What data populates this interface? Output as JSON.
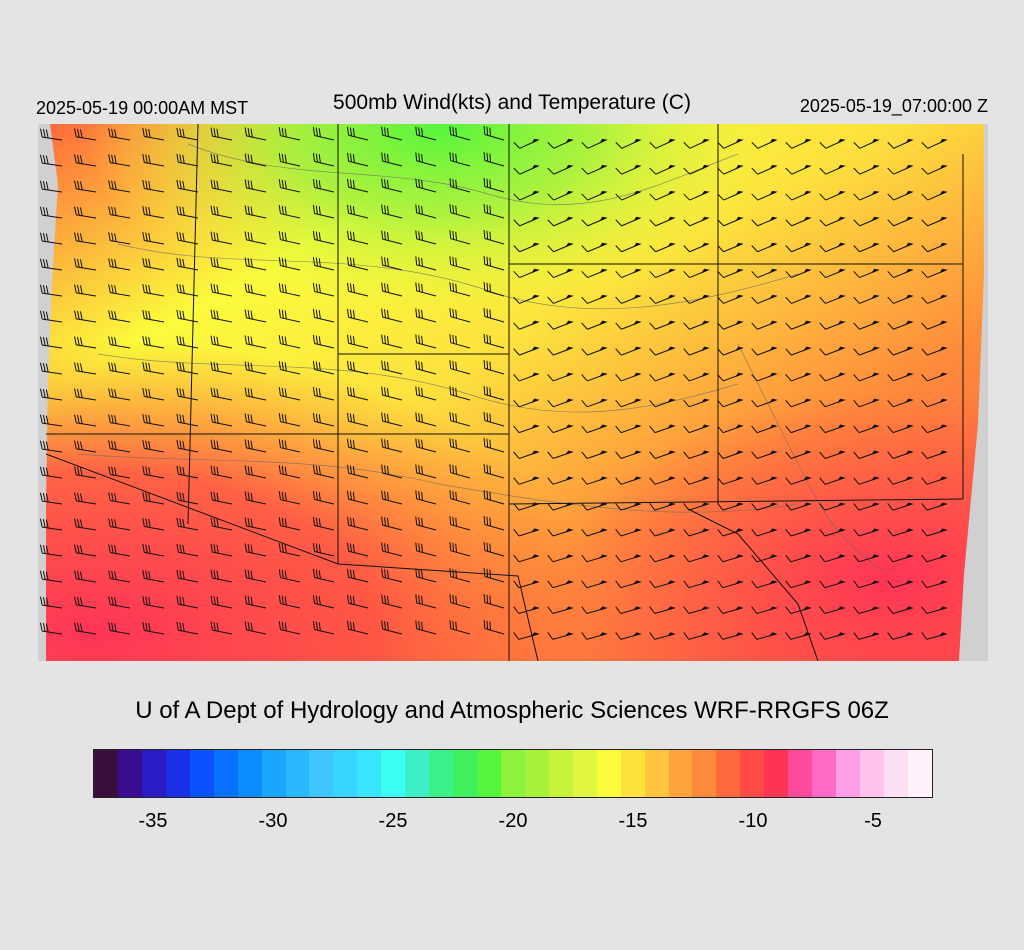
{
  "header": {
    "valid_local": "2025-05-19 00:00AM MST",
    "title": "500mb Wind(kts) and Temperature (C)",
    "valid_utc": "2025-05-19_07:00:00 Z"
  },
  "credit": "U of A Dept of Hydrology and Atmospheric Sciences WRF-RRGFS 06Z",
  "colorbar": {
    "colors": [
      "#3b0f3d",
      "#3a0d8f",
      "#2b1bc4",
      "#1a2fe8",
      "#0a51ff",
      "#0672ff",
      "#0d8cff",
      "#1aa6ff",
      "#2ab8ff",
      "#3fc6ff",
      "#37d4ff",
      "#38e6ff",
      "#3cfff4",
      "#3df0c8",
      "#3cf08a",
      "#3ef05c",
      "#54f53c",
      "#8cf23c",
      "#a8f23e",
      "#c8f23c",
      "#e1f640",
      "#fbfb3c",
      "#fde23e",
      "#fec63e",
      "#fea43c",
      "#fe8a3c",
      "#fe6a3c",
      "#fe4a46",
      "#fe3457",
      "#fe4a9a",
      "#fe6ac6",
      "#fe9ee8",
      "#fec2ee",
      "#fee0f6",
      "#fff2fb"
    ],
    "ticks": [
      {
        "label": "-35",
        "value": -35
      },
      {
        "label": "-30",
        "value": -30
      },
      {
        "label": "-25",
        "value": -25
      },
      {
        "label": "-20",
        "value": -20
      },
      {
        "label": "-15",
        "value": -15
      },
      {
        "label": "-10",
        "value": -10
      },
      {
        "label": "-5",
        "value": -5
      }
    ]
  },
  "map": {
    "field": "500mb temperature (C) with wind barbs (kts)",
    "background_color": "#d0d0d0",
    "boundary_color": "#111111",
    "contour_color": "#666666"
  }
}
